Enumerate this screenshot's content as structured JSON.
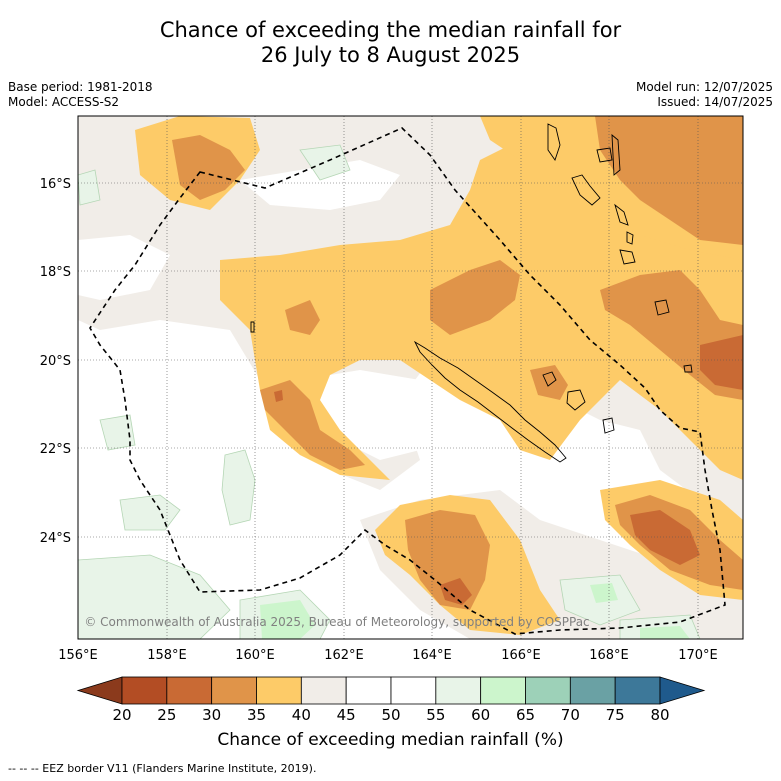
{
  "title": {
    "line1": "Chance of exceeding the median rainfall for",
    "line2": "26 July to 8 August 2025"
  },
  "meta": {
    "base_period": "Base period: 1981-2018",
    "model": "Model: ACCESS-S2",
    "model_run": "Model run: 12/07/2025",
    "issued": "Issued: 14/07/2025"
  },
  "map": {
    "lat_labels": [
      "16°S",
      "18°S",
      "20°S",
      "22°S",
      "24°S"
    ],
    "lon_labels": [
      "156°E",
      "158°E",
      "160°E",
      "162°E",
      "164°E",
      "166°E",
      "168°E",
      "170°E"
    ],
    "copyright": "© Commonwealth of Australia 2025, Bureau of Meteorology, supported by COSPPac"
  },
  "colorbar": {
    "ticks": [
      "20",
      "25",
      "30",
      "35",
      "40",
      "45",
      "50",
      "55",
      "60",
      "65",
      "70",
      "75",
      "80"
    ],
    "colors": [
      "#8b3a1c",
      "#b34d24",
      "#c96a34",
      "#e09449",
      "#fdcb68",
      "#f1ede8",
      "#ffffff",
      "#ffffff",
      "#e8f4e8",
      "#ccf5cc",
      "#9dd1b8",
      "#6aa1a4",
      "#3d7899",
      "#1f5a8c"
    ],
    "label": "Chance of exceeding median rainfall (%)"
  },
  "footer": "--  --  -- EEZ border V11 (Flanders Marine Institute, 2019)."
}
